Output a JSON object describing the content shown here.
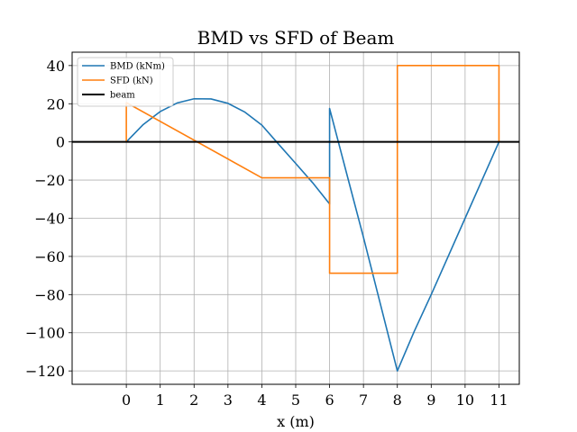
{
  "chart_data": {
    "type": "line",
    "title": "BMD vs SFD of Beam",
    "xlabel": "x (m)",
    "ylabel": "",
    "xlim": [
      -1.6,
      11.6
    ],
    "ylim": [
      -127,
      47
    ],
    "xticks": [
      0,
      1,
      2,
      3,
      4,
      5,
      6,
      7,
      8,
      9,
      10,
      11
    ],
    "yticks": [
      40,
      20,
      0,
      -20,
      -40,
      -60,
      -80,
      -100,
      -120
    ],
    "grid": true,
    "legend_position": "top-left",
    "series": [
      {
        "name": "BMD (kNm)",
        "color": "#1f77b4",
        "x": [
          0,
          0.5,
          1,
          1.5,
          2,
          2.5,
          3,
          3.5,
          4,
          4.5,
          5,
          5.5,
          6,
          6,
          6.5,
          7,
          7.5,
          8,
          8.5,
          9,
          9.5,
          10,
          10.5,
          11
        ],
        "y": [
          0,
          9.1,
          15.9,
          20.4,
          22.6,
          22.5,
          20.2,
          15.6,
          8.8,
          -1.3,
          -11.3,
          -21.4,
          -32.5,
          17.5,
          -16.3,
          -50.0,
          -85.0,
          -120.0,
          -99.2,
          -80.0,
          -60.0,
          -40.0,
          -20.0,
          0
        ]
      },
      {
        "name": "SFD (kN)",
        "color": "#ff7f0e",
        "x": [
          -1,
          0,
          0,
          4,
          6,
          6,
          8,
          8,
          11,
          11
        ],
        "y": [
          0,
          0,
          20.6,
          -18.8,
          -18.8,
          -68.8,
          -68.8,
          40,
          40,
          0
        ]
      },
      {
        "name": "beam",
        "color": "#000000",
        "x": [
          -1.6,
          11.6
        ],
        "y": [
          0,
          0
        ]
      }
    ]
  }
}
